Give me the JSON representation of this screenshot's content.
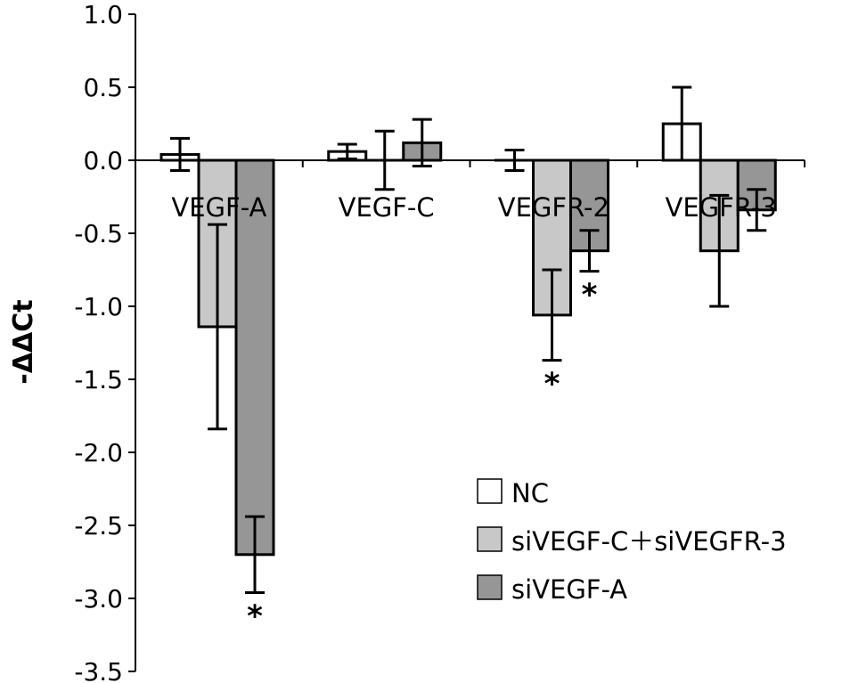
{
  "chart_data": {
    "type": "bar",
    "title": "",
    "xlabel": "",
    "ylabel": "-ΔΔCt",
    "ylim": [
      -3.5,
      1.0
    ],
    "yticks": [
      1.0,
      0.5,
      0.0,
      -0.5,
      -1.0,
      -1.5,
      -2.0,
      -2.5,
      -3.0,
      -3.5
    ],
    "ytick_labels": [
      "1.0",
      "0.5",
      "0.0",
      "-0.5",
      "-1.0",
      "-1.5",
      "-2.0",
      "-2.5",
      "-3.0",
      "-3.5"
    ],
    "categories": [
      "VEGF-A",
      "VEGF-C",
      "VEGFR-2",
      "VEGFR-3"
    ],
    "series": [
      {
        "name": "NC",
        "color": "#ffffff",
        "values": [
          0.04,
          0.06,
          0.0,
          0.25
        ],
        "error": [
          0.11,
          0.05,
          0.07,
          0.25
        ]
      },
      {
        "name": "siVEGF-C＋siVEGFR-3",
        "color": "#c8c8c8",
        "values": [
          -1.14,
          0.0,
          -1.06,
          -0.62
        ],
        "error": [
          0.7,
          0.2,
          0.31,
          0.38
        ]
      },
      {
        "name": "siVEGF-A",
        "color": "#969696",
        "values": [
          -2.7,
          0.12,
          -0.62,
          -0.34
        ],
        "error": [
          0.26,
          0.16,
          0.14,
          0.14
        ]
      }
    ],
    "significance_markers": [
      {
        "category": "VEGF-A",
        "series": "siVEGF-A",
        "label": "*"
      },
      {
        "category": "VEGFR-2",
        "series": "siVEGF-C＋siVEGFR-3",
        "label": "*"
      },
      {
        "category": "VEGFR-2",
        "series": "siVEGF-A",
        "label": "*"
      }
    ],
    "legend_position": "bottom-right",
    "grid": false
  }
}
